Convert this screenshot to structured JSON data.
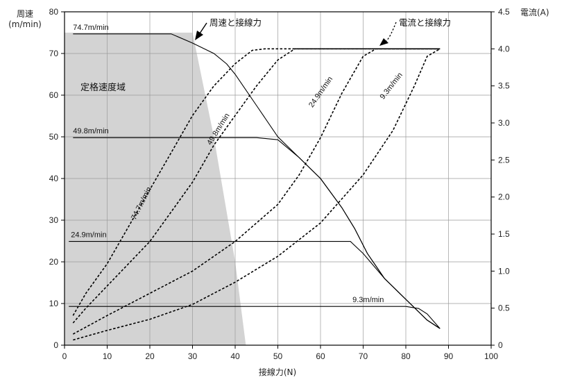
{
  "chart_data": {
    "type": "line",
    "axes": {
      "x": {
        "label": "接線力(N)",
        "min": 0,
        "max": 100,
        "ticks": [
          0,
          10,
          20,
          30,
          40,
          50,
          60,
          70,
          80,
          90,
          100
        ]
      },
      "y_left": {
        "label_lines": [
          "周速",
          "(m/min)"
        ],
        "min": 0,
        "max": 80,
        "ticks": [
          0,
          10,
          20,
          30,
          40,
          50,
          60,
          70,
          80
        ]
      },
      "y_right": {
        "label": "電流(A)",
        "min": 0,
        "max": 4.5,
        "ticks": [
          0,
          0.5,
          1.0,
          1.5,
          2.0,
          2.5,
          3.0,
          3.5,
          4.0,
          4.5
        ],
        "tick_labels": [
          "0",
          "0.5",
          "1.0",
          "1.5",
          "2.0",
          "2.5",
          "3.0",
          "3.5",
          "4.0",
          "4.5"
        ]
      }
    },
    "grid": true,
    "region": {
      "label": "定格速度域",
      "polygon": [
        [
          0,
          75
        ],
        [
          30,
          75
        ],
        [
          35,
          50
        ],
        [
          40,
          20
        ],
        [
          42.5,
          0
        ],
        [
          0,
          0
        ]
      ]
    },
    "speed_series": [
      {
        "label": "74.7m/min",
        "points": [
          [
            2,
            74.7
          ],
          [
            25,
            74.7
          ],
          [
            30,
            72.5
          ],
          [
            35,
            70
          ],
          [
            38,
            67.5
          ],
          [
            40,
            65
          ],
          [
            45,
            57.5
          ],
          [
            50,
            50
          ],
          [
            55,
            45
          ],
          [
            60,
            40
          ],
          [
            65,
            33
          ],
          [
            68,
            28
          ],
          [
            71,
            22
          ],
          [
            75,
            16
          ],
          [
            80,
            11
          ],
          [
            85,
            6
          ],
          [
            88,
            4
          ]
        ]
      },
      {
        "label": "49.8m/min",
        "points": [
          [
            2,
            49.8
          ],
          [
            45,
            49.8
          ],
          [
            50,
            49.3
          ],
          [
            55,
            45
          ],
          [
            60,
            40
          ],
          [
            65,
            33
          ],
          [
            68,
            28
          ],
          [
            71,
            22
          ],
          [
            75,
            16
          ],
          [
            80,
            11
          ],
          [
            85,
            6
          ],
          [
            88,
            4
          ]
        ]
      },
      {
        "label": "24.9m/min",
        "points": [
          [
            1,
            24.9
          ],
          [
            67,
            24.9
          ],
          [
            70,
            22
          ],
          [
            75,
            16
          ],
          [
            80,
            11
          ],
          [
            85,
            6
          ],
          [
            88,
            4
          ]
        ]
      },
      {
        "label": "9.3m/min",
        "points": [
          [
            1,
            9.3
          ],
          [
            80,
            9.3
          ],
          [
            83,
            8.8
          ],
          [
            85,
            7.5
          ],
          [
            88,
            4
          ]
        ]
      }
    ],
    "current_series": [
      {
        "label": "74.7m/min",
        "points": [
          [
            2,
            0.4
          ],
          [
            5,
            0.7
          ],
          [
            10,
            1.1
          ],
          [
            15,
            1.6
          ],
          [
            20,
            2.1
          ],
          [
            25,
            2.6
          ],
          [
            30,
            3.1
          ],
          [
            35,
            3.5
          ],
          [
            40,
            3.8
          ],
          [
            44,
            3.98
          ],
          [
            47,
            4.0
          ],
          [
            88,
            4.0
          ]
        ]
      },
      {
        "label": "49.8m/min",
        "points": [
          [
            2,
            0.3
          ],
          [
            5,
            0.5
          ],
          [
            10,
            0.8
          ],
          [
            15,
            1.1
          ],
          [
            20,
            1.4
          ],
          [
            25,
            1.8
          ],
          [
            30,
            2.2
          ],
          [
            35,
            2.7
          ],
          [
            40,
            3.1
          ],
          [
            45,
            3.5
          ],
          [
            50,
            3.85
          ],
          [
            54,
            4.0
          ],
          [
            88,
            4.0
          ]
        ]
      },
      {
        "label": "24.9m/min",
        "points": [
          [
            2,
            0.15
          ],
          [
            10,
            0.4
          ],
          [
            20,
            0.7
          ],
          [
            30,
            1.0
          ],
          [
            40,
            1.4
          ],
          [
            50,
            1.9
          ],
          [
            55,
            2.3
          ],
          [
            60,
            2.8
          ],
          [
            65,
            3.4
          ],
          [
            70,
            3.9
          ],
          [
            73,
            4.0
          ],
          [
            88,
            4.0
          ]
        ]
      },
      {
        "label": "9.3m/min",
        "points": [
          [
            2,
            0.07
          ],
          [
            10,
            0.2
          ],
          [
            20,
            0.35
          ],
          [
            30,
            0.55
          ],
          [
            40,
            0.85
          ],
          [
            50,
            1.2
          ],
          [
            60,
            1.65
          ],
          [
            70,
            2.3
          ],
          [
            77,
            2.9
          ],
          [
            82,
            3.5
          ],
          [
            85,
            3.9
          ],
          [
            88,
            4.0
          ]
        ]
      }
    ],
    "annotations": {
      "speed_vs_force": "周速と接線力",
      "current_vs_force": "電流と接線力"
    }
  }
}
